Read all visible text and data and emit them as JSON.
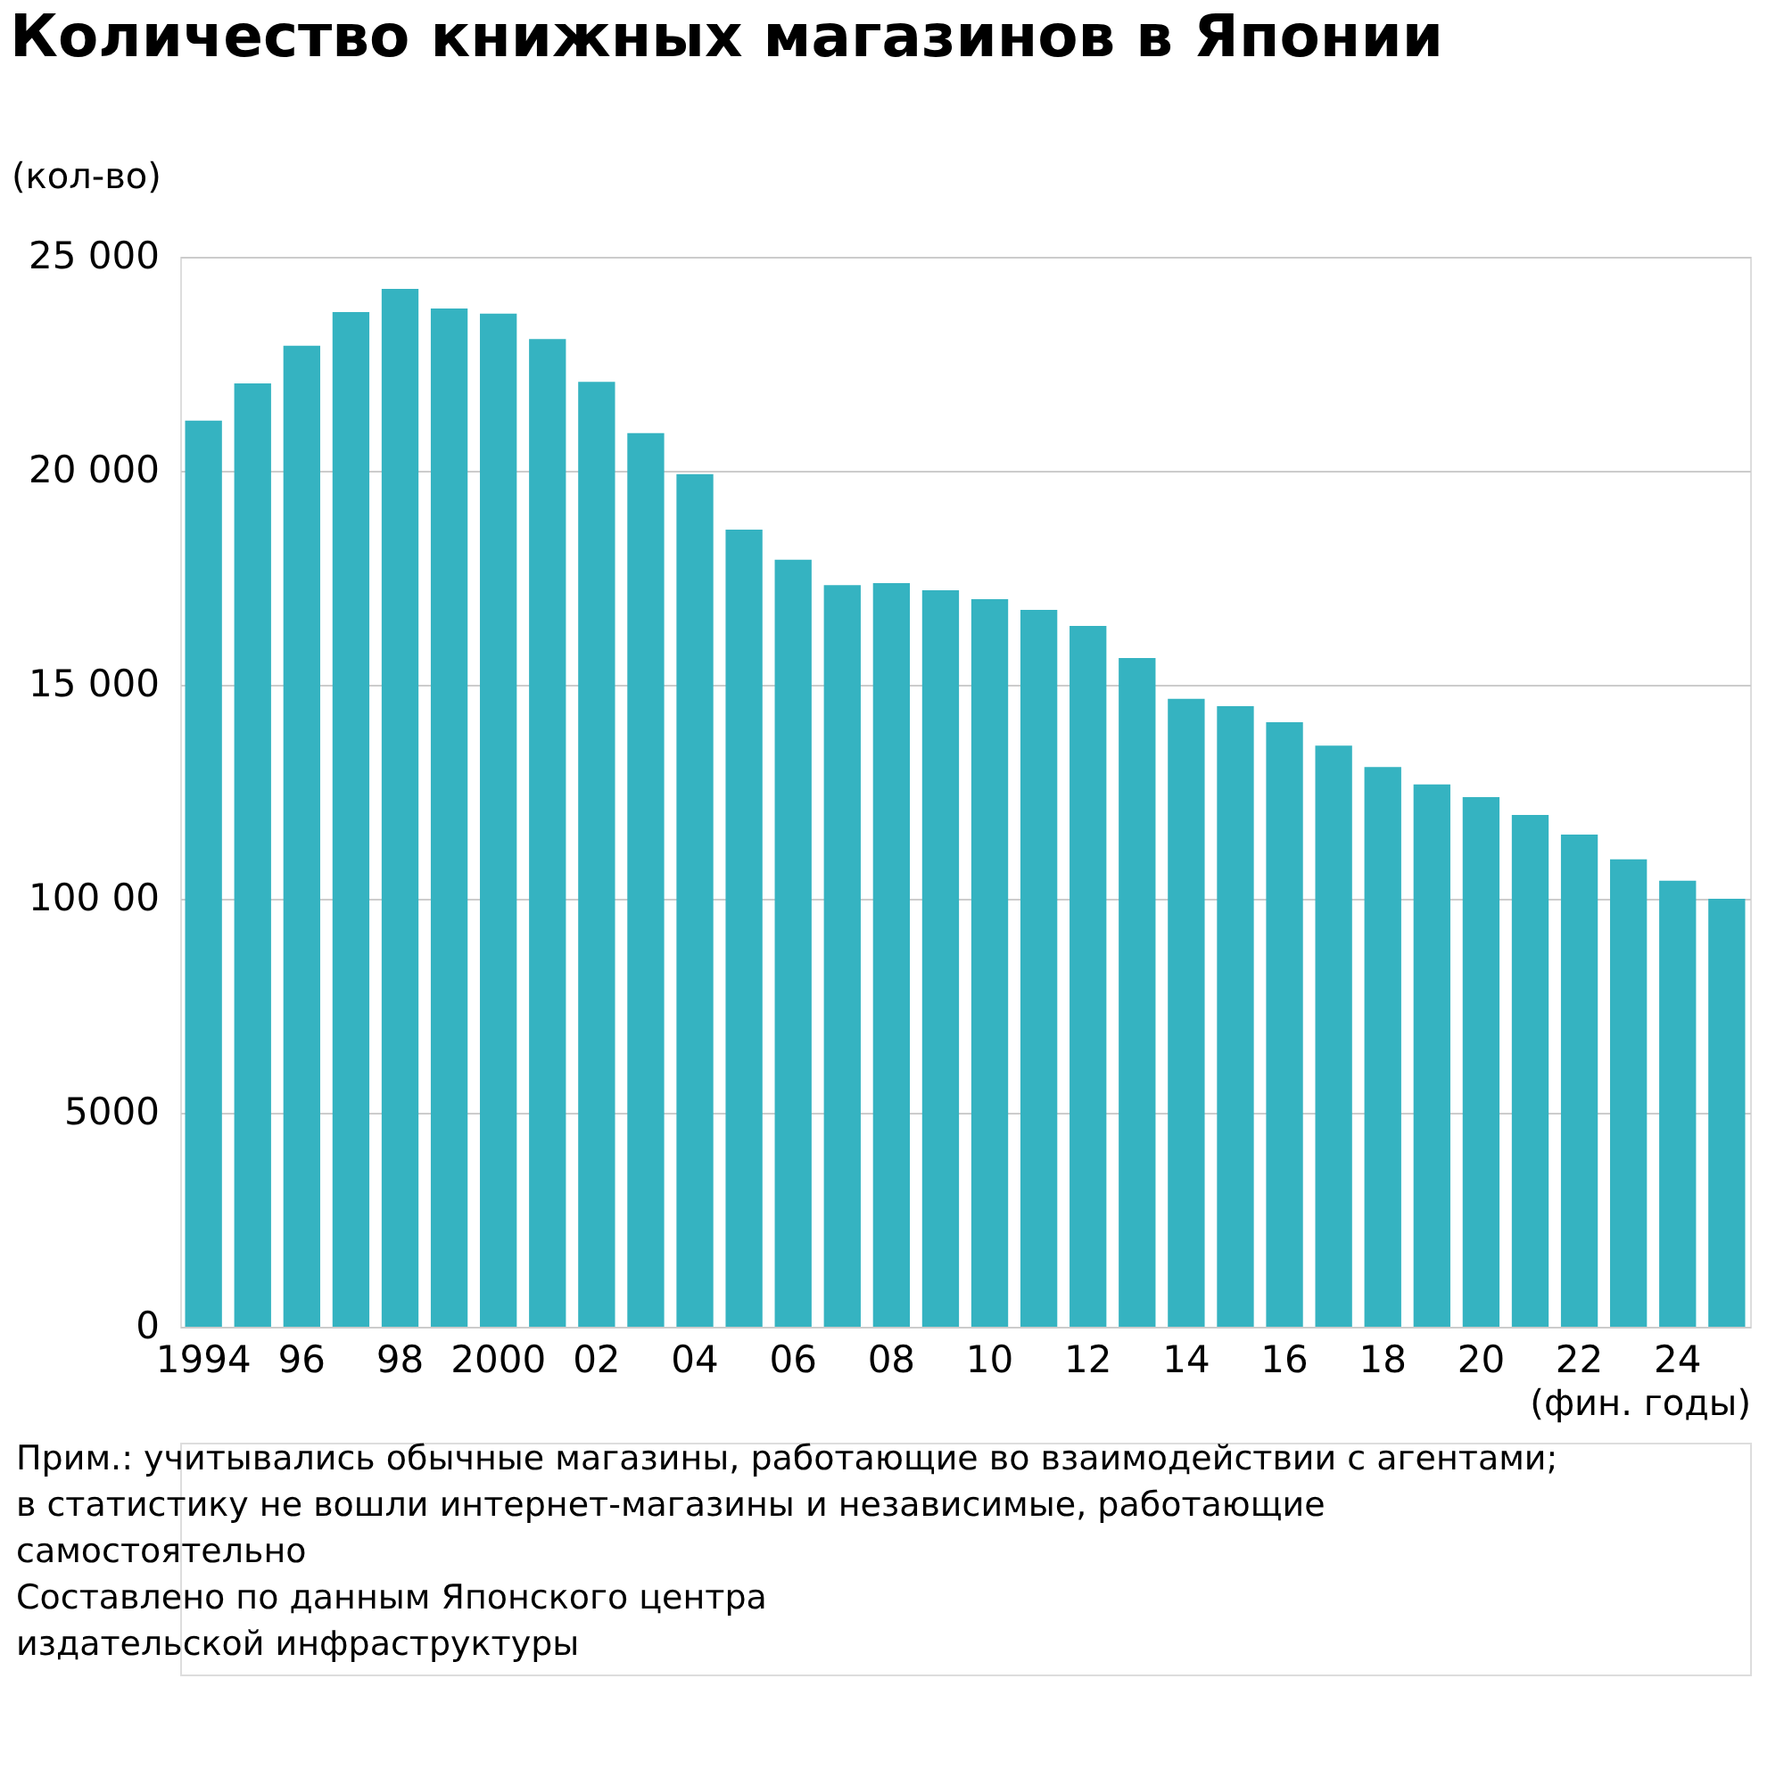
{
  "chart_data": {
    "type": "bar",
    "title": "Количество книжных магазинов в Японии",
    "ylabel": "(кол-во)",
    "xlabel": "(фин. годы)",
    "categories": [
      "1994",
      null,
      "96",
      null,
      "98",
      null,
      "2000",
      null,
      "02",
      null,
      "04",
      null,
      "06",
      null,
      "08",
      null,
      "10",
      null,
      "12",
      null,
      "14",
      null,
      "16",
      null,
      "18",
      null,
      "20",
      null,
      "22",
      null,
      "24",
      null
    ],
    "values": [
      21170,
      22040,
      22920,
      23710,
      24250,
      23790,
      23670,
      23080,
      22080,
      20880,
      19920,
      18625,
      17920,
      17330,
      17375,
      17210,
      17000,
      16750,
      16375,
      15625,
      14670,
      14500,
      14125,
      13580,
      13080,
      12670,
      12375,
      11960,
      11500,
      10920,
      10420,
      10000
    ],
    "color": "#35b3c1",
    "ylim": [
      0,
      25000
    ],
    "yticks": [
      0,
      5000,
      {
        "value": 10000,
        "label": "100 00"
      },
      {
        "value": 15000,
        "label": "15 000"
      },
      {
        "value": 20000,
        "label": "20 000"
      },
      {
        "value": 25000,
        "label": "25 000"
      }
    ],
    "grid": "y",
    "annotations": [
      "Прим.: учитывались обычные магазины, работающие во взаимодействии с агентами;\nв статистику не вошли интернет-магазины и независимые, работающие\nсамостоятельно",
      "Составлено по данным Японского центра\nиздательской инфраструктуры"
    ]
  }
}
